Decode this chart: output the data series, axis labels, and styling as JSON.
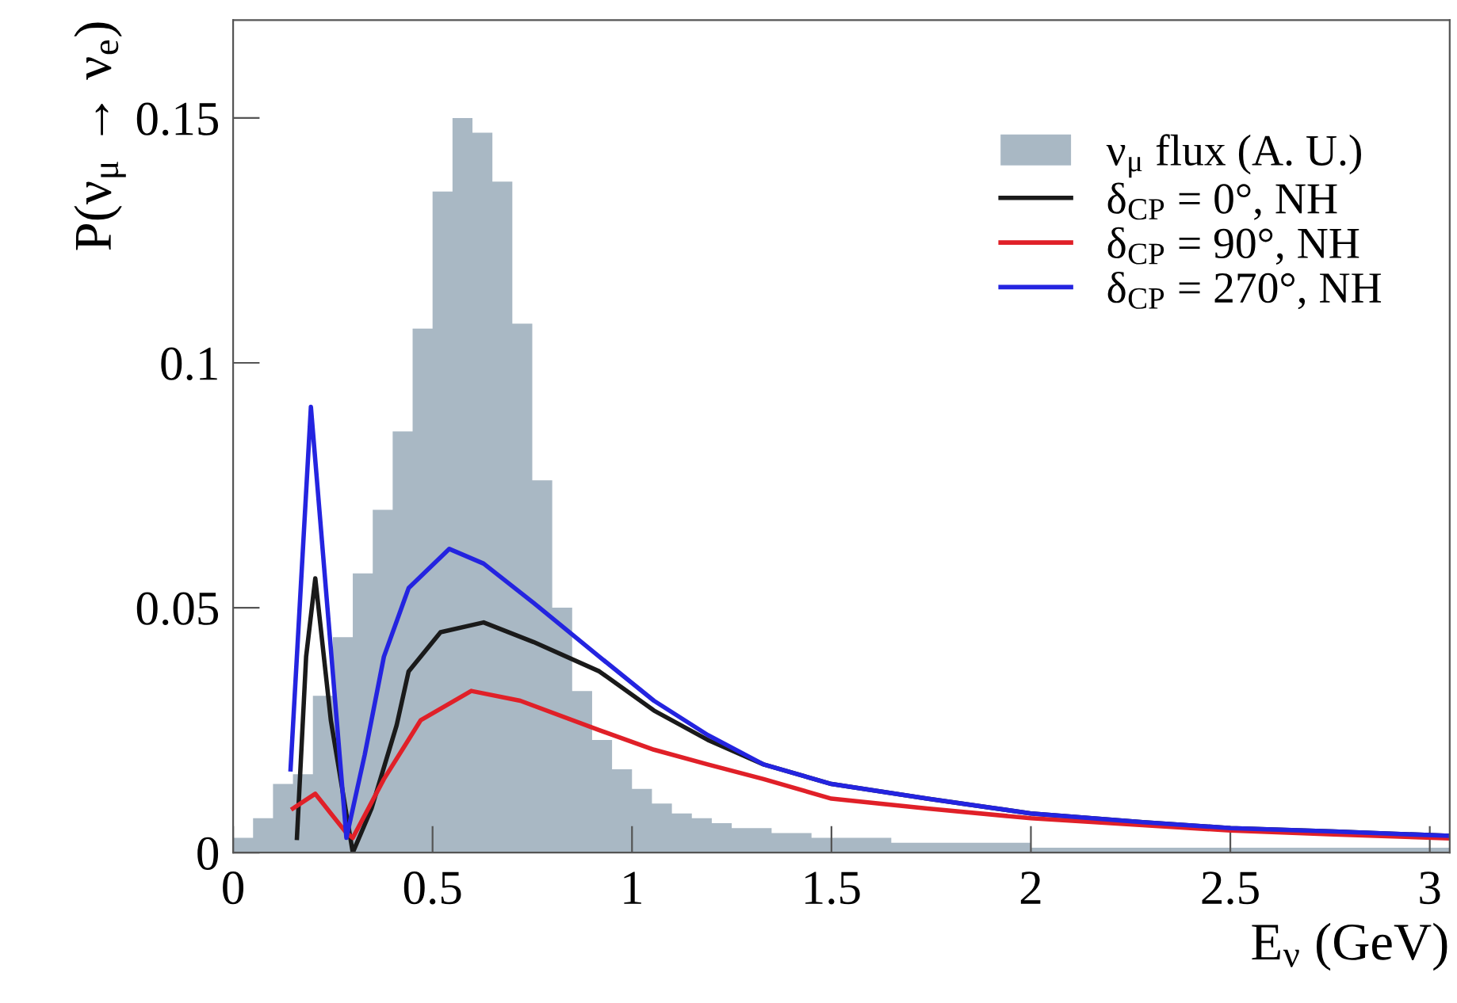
{
  "chart_data": {
    "type": "line",
    "xlabel": "E$_{ν}$ (GeV)",
    "ylabel": "P(ν$_{μ}$ → ν$_{e}$)",
    "xlim": [
      0,
      3.05
    ],
    "ylim": [
      0,
      0.17
    ],
    "xticks": [
      0,
      0.5,
      1,
      1.5,
      2,
      2.5,
      3
    ],
    "yticks": [
      0,
      0.05,
      0.1,
      0.15
    ],
    "legend": "top right",
    "grid": false,
    "marker": "none",
    "line_style": "solid",
    "series": [
      {
        "type": "histogram",
        "name": "ν$_{μ}$ flux (A. U.)",
        "color": "#a9b8c4",
        "bins": [
          0,
          0.05,
          0.1,
          0.15,
          0.2,
          0.25,
          0.3,
          0.35,
          0.4,
          0.45,
          0.5,
          0.55,
          0.6,
          0.65,
          0.7,
          0.75,
          0.8,
          0.85,
          0.9,
          0.95,
          1.0,
          1.05,
          1.1,
          1.15,
          1.2,
          1.25,
          1.3,
          1.35,
          1.4,
          1.45,
          1.5,
          1.55,
          1.6,
          1.65,
          1.7,
          1.75,
          1.8,
          1.85,
          1.9,
          1.95,
          2.0,
          2.05,
          2.1,
          2.15,
          2.2,
          2.25,
          2.3,
          2.35,
          2.4,
          2.45,
          2.5,
          2.55,
          2.6,
          2.65,
          2.7,
          2.75,
          2.8,
          2.85,
          2.9,
          2.95,
          3.0,
          3.05
        ],
        "values": [
          0.003,
          0.007,
          0.014,
          0.016,
          0.032,
          0.044,
          0.057,
          0.07,
          0.086,
          0.107,
          0.135,
          0.15,
          0.147,
          0.137,
          0.108,
          0.076,
          0.05,
          0.033,
          0.023,
          0.017,
          0.013,
          0.01,
          0.008,
          0.007,
          0.006,
          0.005,
          0.005,
          0.004,
          0.004,
          0.003,
          0.003,
          0.003,
          0.003,
          0.002,
          0.002,
          0.002,
          0.002,
          0.002,
          0.002,
          0.002,
          0.001,
          0.001,
          0.001,
          0.001,
          0.001,
          0.001,
          0.001,
          0.001,
          0.001,
          0.001,
          0.001,
          0.001,
          0.001,
          0.001,
          0.001,
          0.001,
          0.001,
          0.001,
          0.001,
          0.001,
          0.001
        ]
      },
      {
        "type": "line",
        "name": "δ$_{CP}$ = 0°, NH",
        "color": "#1a1a1a",
        "x": [
          0.16,
          0.183,
          0.206,
          0.245,
          0.3,
          0.347,
          0.41,
          0.44,
          0.52,
          0.628,
          0.753,
          0.918,
          1.055,
          1.19,
          1.33,
          1.5,
          1.74,
          2.0,
          2.28,
          2.5,
          2.76,
          3.05
        ],
        "values": [
          0.003,
          0.04,
          0.056,
          0.027,
          0.0,
          0.009,
          0.026,
          0.037,
          0.045,
          0.047,
          0.043,
          0.037,
          0.029,
          0.023,
          0.018,
          0.014,
          0.011,
          0.008,
          0.0062,
          0.005,
          0.0043,
          0.0034
        ]
      },
      {
        "type": "line",
        "name": "δ$_{CP}$ = 90°, NH",
        "color": "#e02028",
        "x": [
          0.15,
          0.206,
          0.245,
          0.284,
          0.3,
          0.378,
          0.47,
          0.597,
          0.72,
          0.918,
          1.055,
          1.19,
          1.33,
          1.5,
          1.74,
          2.0,
          2.28,
          2.5,
          2.76,
          3.05
        ],
        "values": [
          0.009,
          0.012,
          0.008,
          0.004,
          0.003,
          0.015,
          0.027,
          0.033,
          0.031,
          0.025,
          0.021,
          0.018,
          0.015,
          0.011,
          0.009,
          0.007,
          0.0056,
          0.0045,
          0.0037,
          0.0029
        ]
      },
      {
        "type": "line",
        "name": "δ$_{CP}$ = 270°, NH",
        "color": "#2424e0",
        "x": [
          0.144,
          0.195,
          0.284,
          0.33,
          0.378,
          0.44,
          0.542,
          0.628,
          0.753,
          0.918,
          1.055,
          1.19,
          1.33,
          1.5,
          1.74,
          2.0,
          2.28,
          2.5,
          2.76,
          3.05
        ],
        "values": [
          0.017,
          0.091,
          0.003,
          0.02,
          0.04,
          0.054,
          0.062,
          0.059,
          0.051,
          0.04,
          0.031,
          0.024,
          0.018,
          0.014,
          0.011,
          0.008,
          0.0062,
          0.005,
          0.0043,
          0.0034
        ]
      }
    ]
  }
}
